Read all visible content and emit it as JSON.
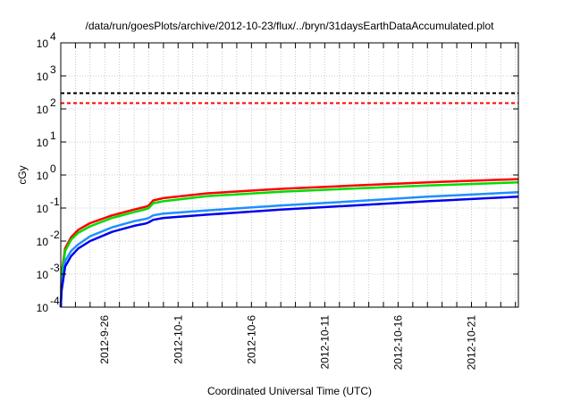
{
  "chart_data": {
    "type": "line",
    "title": "/data/run/goesPlots/archive/2012-10-23/flux/../bryn/31daysEarthDataAccumulated.plot",
    "xlabel": "Coordinated Universal Time (UTC)",
    "ylabel": "cGy",
    "yscale": "log",
    "ylim": [
      0.0001,
      10000
    ],
    "xlim_days_from_2012-9-23": [
      0,
      31.2
    ],
    "yticks": [
      {
        "exp": "-4"
      },
      {
        "exp": "-3"
      },
      {
        "exp": "-2"
      },
      {
        "exp": "-1"
      },
      {
        "exp": "0"
      },
      {
        "exp": "1"
      },
      {
        "exp": "2"
      },
      {
        "exp": "3"
      },
      {
        "exp": "4"
      }
    ],
    "ytick_base": "10",
    "xticks": [
      {
        "label": "2012-9-26",
        "day": 3
      },
      {
        "label": "2012-10-1",
        "day": 8
      },
      {
        "label": "2012-10-6",
        "day": 13
      },
      {
        "label": "2012-10-11",
        "day": 18
      },
      {
        "label": "2012-10-16",
        "day": 23
      },
      {
        "label": "2012-10-21",
        "day": 28
      }
    ],
    "grid": true,
    "thresholds": [
      {
        "value": 300,
        "color": "#000000"
      },
      {
        "value": 150,
        "color": "#ff0000"
      }
    ],
    "series": [
      {
        "name": "red",
        "color": "#ff0000",
        "x": [
          0,
          0.05,
          0.3,
          0.7,
          1.2,
          2,
          3.5,
          5,
          5.8,
          6,
          6.3,
          7,
          10,
          15,
          20,
          25,
          31.2
        ],
        "y": [
          0.0001,
          0.001,
          0.006,
          0.013,
          0.022,
          0.035,
          0.06,
          0.09,
          0.11,
          0.12,
          0.17,
          0.2,
          0.28,
          0.38,
          0.48,
          0.6,
          0.75
        ]
      },
      {
        "name": "green",
        "color": "#00dd00",
        "x": [
          0,
          0.05,
          0.3,
          0.7,
          1.2,
          2,
          3.5,
          5,
          5.8,
          6,
          6.3,
          7,
          10,
          15,
          20,
          25,
          31.2
        ],
        "y": [
          0.0001,
          0.0008,
          0.005,
          0.011,
          0.018,
          0.028,
          0.05,
          0.075,
          0.092,
          0.1,
          0.14,
          0.16,
          0.23,
          0.31,
          0.39,
          0.48,
          0.6
        ]
      },
      {
        "name": "light-blue",
        "color": "#1e90ff",
        "x": [
          0,
          0.05,
          0.3,
          0.7,
          1.2,
          2,
          3.5,
          5,
          5.8,
          6,
          6.3,
          7,
          10,
          15,
          20,
          25,
          31.2
        ],
        "y": [
          0.0001,
          0.0004,
          0.0025,
          0.005,
          0.008,
          0.014,
          0.026,
          0.04,
          0.047,
          0.05,
          0.06,
          0.068,
          0.085,
          0.12,
          0.16,
          0.22,
          0.3
        ]
      },
      {
        "name": "blue",
        "color": "#0000ee",
        "x": [
          0,
          0.05,
          0.3,
          0.7,
          1.2,
          2,
          3.5,
          5,
          5.8,
          6,
          6.3,
          7,
          10,
          15,
          20,
          25,
          31.2
        ],
        "y": [
          0.0001,
          0.0003,
          0.0017,
          0.0035,
          0.006,
          0.01,
          0.019,
          0.029,
          0.034,
          0.037,
          0.044,
          0.05,
          0.063,
          0.09,
          0.12,
          0.16,
          0.22
        ]
      }
    ]
  }
}
